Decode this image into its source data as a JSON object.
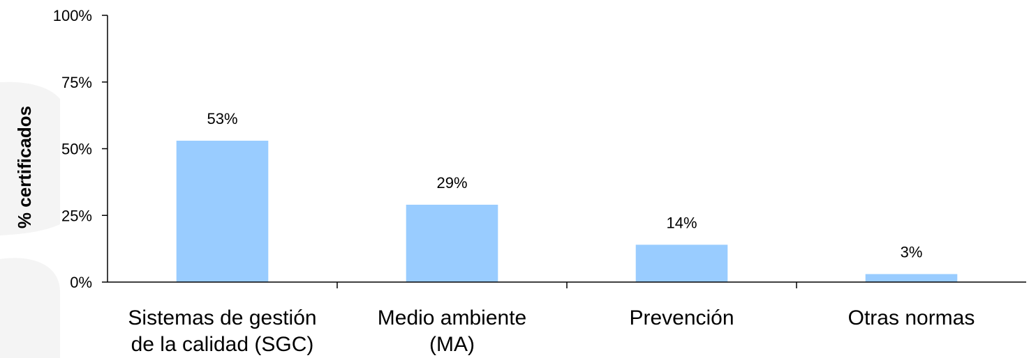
{
  "chart_data": {
    "type": "bar",
    "categories": [
      [
        "Sistemas de gestión",
        "de la calidad (SGC)"
      ],
      [
        "Medio ambiente",
        "(MA)"
      ],
      [
        "Prevención"
      ],
      [
        "Otras normas"
      ]
    ],
    "values": [
      53,
      29,
      14,
      3
    ],
    "data_labels": [
      "53%",
      "29%",
      "14%",
      "3%"
    ],
    "title": "",
    "xlabel": "",
    "ylabel": "% certificados",
    "ylim": [
      0,
      100
    ],
    "yticks": [
      0,
      25,
      50,
      75,
      100
    ],
    "ytick_labels": [
      "0%",
      "25%",
      "50%",
      "75%",
      "100%"
    ],
    "bar_color": "#99ccff",
    "grid": false,
    "legend": "none"
  }
}
